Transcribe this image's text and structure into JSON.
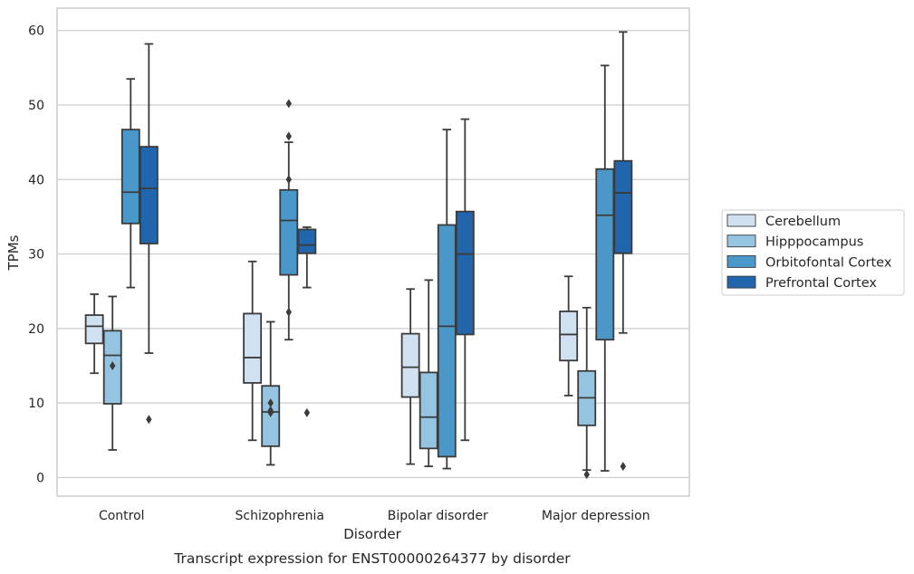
{
  "chart_data": {
    "type": "boxplot",
    "caption": "Transcript expression for ENST00000264377 by disorder",
    "xlabel": "Disorder",
    "ylabel": "TPMs",
    "ylim": [
      -2.5,
      63
    ],
    "yticks": [
      0,
      10,
      20,
      30,
      40,
      50,
      60
    ],
    "grid": true,
    "legend_position": "right",
    "categories": [
      "Control",
      "Schizophrenia",
      "Bipolar disorder",
      "Major depression"
    ],
    "series": [
      {
        "name": "Cerebellum",
        "color": "#d0e1f2",
        "boxes": [
          {
            "whisker_low": 14,
            "q1": 18,
            "median": 20.3,
            "q3": 21.8,
            "whisker_high": 24.6,
            "outliers": []
          },
          {
            "whisker_low": 5,
            "q1": 12.7,
            "median": 16.1,
            "q3": 22,
            "whisker_high": 29,
            "outliers": []
          },
          {
            "whisker_low": 1.8,
            "q1": 10.8,
            "median": 14.8,
            "q3": 19.3,
            "whisker_high": 25.3,
            "outliers": []
          },
          {
            "whisker_low": 11,
            "q1": 15.7,
            "median": 19.2,
            "q3": 22.3,
            "whisker_high": 27,
            "outliers": []
          }
        ]
      },
      {
        "name": "Hipppocampus",
        "color": "#94c4df",
        "boxes": [
          {
            "whisker_low": 3.7,
            "q1": 9.9,
            "median": 16.4,
            "q3": 19.7,
            "whisker_high": 24.3,
            "outliers": [
              15
            ]
          },
          {
            "whisker_low": 1.7,
            "q1": 4.2,
            "median": 8.8,
            "q3": 12.3,
            "whisker_high": 20.9,
            "outliers": [
              10,
              9,
              8.7
            ]
          },
          {
            "whisker_low": 1.5,
            "q1": 3.9,
            "median": 8.1,
            "q3": 14.1,
            "whisker_high": 26.5,
            "outliers": []
          },
          {
            "whisker_low": 1,
            "q1": 7,
            "median": 10.7,
            "q3": 14.3,
            "whisker_high": 22.8,
            "outliers": [
              0.4
            ]
          }
        ]
      },
      {
        "name": "Orbitofontal Cortex",
        "color": "#4a98c9",
        "boxes": [
          {
            "whisker_low": 25.5,
            "q1": 34.1,
            "median": 38.3,
            "q3": 46.7,
            "whisker_high": 53.5,
            "outliers": []
          },
          {
            "whisker_low": 18.5,
            "q1": 27.2,
            "median": 34.5,
            "q3": 38.6,
            "whisker_high": 45,
            "outliers": [
              50.2,
              45.8,
              40,
              22.2
            ]
          },
          {
            "whisker_low": 1.2,
            "q1": 2.8,
            "median": 20.3,
            "q3": 33.9,
            "whisker_high": 46.7,
            "outliers": []
          },
          {
            "whisker_low": 0.9,
            "q1": 18.5,
            "median": 35.2,
            "q3": 41.4,
            "whisker_high": 55.3,
            "outliers": []
          }
        ]
      },
      {
        "name": "Prefrontal Cortex",
        "color": "#2166ac",
        "boxes": [
          {
            "whisker_low": 16.7,
            "q1": 31.4,
            "median": 38.8,
            "q3": 44.4,
            "whisker_high": 58.2,
            "outliers": [
              7.8
            ]
          },
          {
            "whisker_low": 25.5,
            "q1": 30.1,
            "median": 31.2,
            "q3": 33.3,
            "whisker_high": 33.6,
            "outliers": [
              8.7
            ]
          },
          {
            "whisker_low": 5,
            "q1": 19.2,
            "median": 30,
            "q3": 35.7,
            "whisker_high": 48.1,
            "outliers": []
          },
          {
            "whisker_low": 19.4,
            "q1": 30.1,
            "median": 38.2,
            "q3": 42.5,
            "whisker_high": 59.8,
            "outliers": [
              1.5
            ]
          }
        ]
      }
    ]
  }
}
